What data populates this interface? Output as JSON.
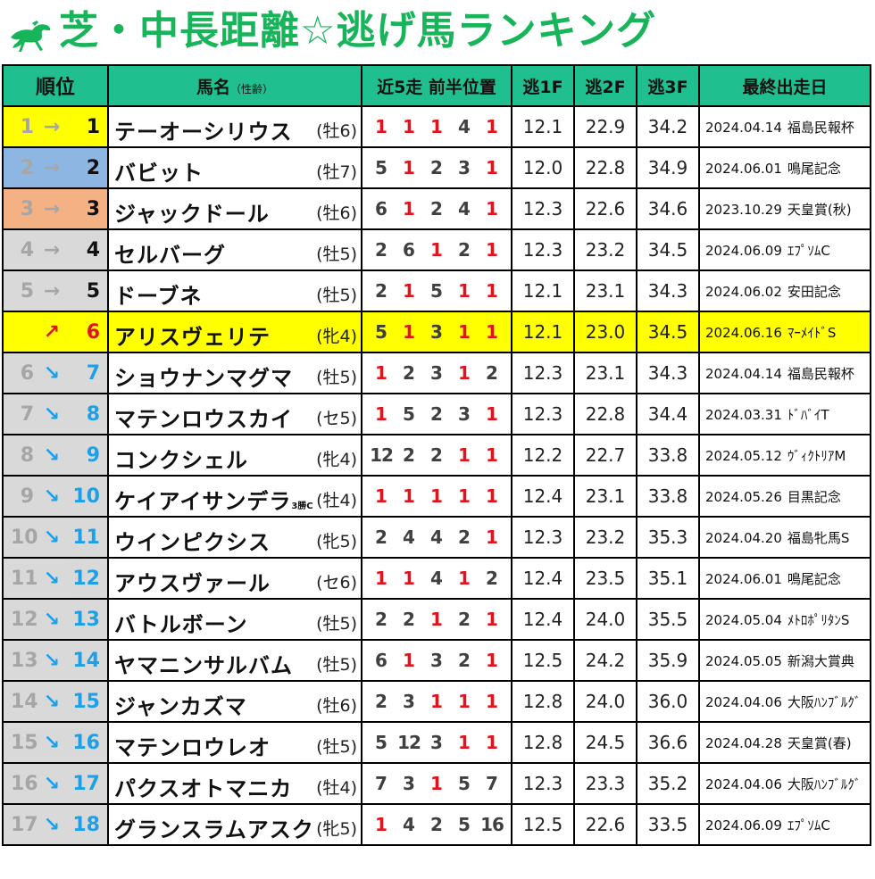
{
  "title": "芝・中長距離☆逃げ馬ランキング",
  "logo_icon": "running-horse-icon",
  "colors": {
    "title": "#18b45a",
    "header_bg": "#1fbf8f",
    "rank1_bg": "#ffff00",
    "rank2_bg": "#8eb6e3",
    "rank3_bg": "#f4b183",
    "rank_other_bg": "#d9d9d9",
    "highlight_row_bg": "#ffff00",
    "arrow_up": "#e0141e",
    "arrow_down": "#1ea0e6",
    "arrow_same": "#a6a6a6",
    "position_red": "#e0141e",
    "position_gray": "#404040"
  },
  "headers": {
    "rank": "順位",
    "name": "馬名",
    "name_sub": "（性齢）",
    "form": "近5走 前半位置",
    "f1": "逃1F",
    "f2": "逃2F",
    "f3": "逃3F",
    "last": "最終出走日"
  },
  "rows": [
    {
      "prev": "1",
      "arrow": "→",
      "trend": "same",
      "rank": "1",
      "name": "テーオーシリウス",
      "cls": "",
      "sexage": "(牡6)",
      "pos": [
        "1",
        "1",
        "1",
        "4",
        "1"
      ],
      "f1": "12.1",
      "f2": "22.9",
      "f3": "34.2",
      "date": "2024.04.14",
      "race": "福島民報杯"
    },
    {
      "prev": "2",
      "arrow": "→",
      "trend": "same",
      "rank": "2",
      "name": "バビット",
      "cls": "",
      "sexage": "(牡7)",
      "pos": [
        "5",
        "1",
        "2",
        "3",
        "1"
      ],
      "f1": "12.0",
      "f2": "22.8",
      "f3": "34.9",
      "date": "2024.06.01",
      "race": "鳴尾記念"
    },
    {
      "prev": "3",
      "arrow": "→",
      "trend": "same",
      "rank": "3",
      "name": "ジャックドール",
      "cls": "",
      "sexage": "(牡6)",
      "pos": [
        "6",
        "1",
        "2",
        "4",
        "1"
      ],
      "f1": "12.3",
      "f2": "22.6",
      "f3": "34.6",
      "date": "2023.10.29",
      "race": "天皇賞(秋)"
    },
    {
      "prev": "4",
      "arrow": "→",
      "trend": "same",
      "rank": "4",
      "name": "セルバーグ",
      "cls": "",
      "sexage": "(牡5)",
      "pos": [
        "2",
        "6",
        "1",
        "2",
        "1"
      ],
      "f1": "12.3",
      "f2": "23.2",
      "f3": "34.5",
      "date": "2024.06.09",
      "race": "ｴﾌﾟｿﾑC"
    },
    {
      "prev": "5",
      "arrow": "→",
      "trend": "same",
      "rank": "5",
      "name": "ドーブネ",
      "cls": "",
      "sexage": "(牡5)",
      "pos": [
        "2",
        "1",
        "5",
        "1",
        "1"
      ],
      "f1": "12.1",
      "f2": "23.1",
      "f3": "34.3",
      "date": "2024.06.02",
      "race": "安田記念"
    },
    {
      "prev": "",
      "arrow": "↗",
      "trend": "up",
      "rank": "6",
      "name": "アリスヴェリテ",
      "cls": "",
      "sexage": "(牝4)",
      "pos": [
        "5",
        "1",
        "3",
        "1",
        "1"
      ],
      "f1": "12.1",
      "f2": "23.0",
      "f3": "34.5",
      "date": "2024.06.16",
      "race": "ﾏｰﾒｲﾄﾞS",
      "highlight": true
    },
    {
      "prev": "6",
      "arrow": "↘",
      "trend": "down",
      "rank": "7",
      "name": "ショウナンマグマ",
      "cls": "",
      "sexage": "(牡5)",
      "pos": [
        "1",
        "2",
        "3",
        "1",
        "2"
      ],
      "f1": "12.3",
      "f2": "23.1",
      "f3": "34.3",
      "date": "2024.04.14",
      "race": "福島民報杯"
    },
    {
      "prev": "7",
      "arrow": "↘",
      "trend": "down",
      "rank": "8",
      "name": "マテンロウスカイ",
      "cls": "",
      "sexage": "(セ5)",
      "pos": [
        "1",
        "5",
        "2",
        "3",
        "1"
      ],
      "f1": "12.3",
      "f2": "22.8",
      "f3": "34.4",
      "date": "2024.03.31",
      "race": "ﾄﾞﾊﾞｲT"
    },
    {
      "prev": "8",
      "arrow": "↘",
      "trend": "down",
      "rank": "9",
      "name": "コンクシェル",
      "cls": "",
      "sexage": "(牝4)",
      "pos": [
        "12",
        "2",
        "2",
        "1",
        "1"
      ],
      "f1": "12.2",
      "f2": "22.7",
      "f3": "33.8",
      "date": "2024.05.12",
      "race": "ｳﾞｨｸﾄﾘｱM"
    },
    {
      "prev": "9",
      "arrow": "↘",
      "trend": "down",
      "rank": "10",
      "name": "ケイアイサンデラ",
      "cls": "3勝C",
      "sexage": "(牡4)",
      "pos": [
        "1",
        "1",
        "1",
        "1",
        "1"
      ],
      "f1": "12.4",
      "f2": "23.1",
      "f3": "33.8",
      "date": "2024.05.26",
      "race": "目黒記念"
    },
    {
      "prev": "10",
      "arrow": "↘",
      "trend": "down",
      "rank": "11",
      "name": "ウインピクシス",
      "cls": "",
      "sexage": "(牝5)",
      "pos": [
        "2",
        "4",
        "4",
        "2",
        "1"
      ],
      "f1": "12.3",
      "f2": "23.2",
      "f3": "35.3",
      "date": "2024.04.20",
      "race": "福島牝馬S"
    },
    {
      "prev": "11",
      "arrow": "↘",
      "trend": "down",
      "rank": "12",
      "name": "アウスヴァール",
      "cls": "",
      "sexage": "(セ6)",
      "pos": [
        "1",
        "1",
        "4",
        "1",
        "2"
      ],
      "f1": "12.4",
      "f2": "23.5",
      "f3": "35.1",
      "date": "2024.06.01",
      "race": "鳴尾記念"
    },
    {
      "prev": "12",
      "arrow": "↘",
      "trend": "down",
      "rank": "13",
      "name": "バトルボーン",
      "cls": "",
      "sexage": "(牡5)",
      "pos": [
        "2",
        "2",
        "1",
        "2",
        "1"
      ],
      "f1": "12.4",
      "f2": "24.0",
      "f3": "35.5",
      "date": "2024.05.04",
      "race": "ﾒﾄﾛﾎﾟﾘﾀﾝS"
    },
    {
      "prev": "13",
      "arrow": "↘",
      "trend": "down",
      "rank": "14",
      "name": "ヤマニンサルバム",
      "cls": "",
      "sexage": "(牡5)",
      "pos": [
        "6",
        "1",
        "3",
        "2",
        "1"
      ],
      "f1": "12.5",
      "f2": "24.2",
      "f3": "35.9",
      "date": "2024.05.05",
      "race": "新潟大賞典"
    },
    {
      "prev": "14",
      "arrow": "↘",
      "trend": "down",
      "rank": "15",
      "name": "ジャンカズマ",
      "cls": "",
      "sexage": "(牡6)",
      "pos": [
        "2",
        "3",
        "1",
        "1",
        "1"
      ],
      "f1": "12.8",
      "f2": "24.0",
      "f3": "36.0",
      "date": "2024.04.06",
      "race": "大阪ﾊﾝﾌﾞﾙｸﾞ"
    },
    {
      "prev": "15",
      "arrow": "↘",
      "trend": "down",
      "rank": "16",
      "name": "マテンロウレオ",
      "cls": "",
      "sexage": "(牡5)",
      "pos": [
        "5",
        "12",
        "3",
        "1",
        "1"
      ],
      "f1": "12.8",
      "f2": "24.5",
      "f3": "36.6",
      "date": "2024.04.28",
      "race": "天皇賞(春)"
    },
    {
      "prev": "16",
      "arrow": "↘",
      "trend": "down",
      "rank": "17",
      "name": "パクスオトマニカ",
      "cls": "",
      "sexage": "(牡4)",
      "pos": [
        "7",
        "3",
        "1",
        "5",
        "7"
      ],
      "f1": "12.3",
      "f2": "23.3",
      "f3": "35.2",
      "date": "2024.04.06",
      "race": "大阪ﾊﾝﾌﾞﾙｸﾞ"
    },
    {
      "prev": "17",
      "arrow": "↘",
      "trend": "down",
      "rank": "18",
      "name": "グランスラムアスク",
      "cls": "",
      "sexage": "(牝5)",
      "pos": [
        "1",
        "4",
        "2",
        "5",
        "16"
      ],
      "f1": "12.5",
      "f2": "22.6",
      "f3": "33.5",
      "date": "2024.06.09",
      "race": "ｴﾌﾟｿﾑC"
    }
  ]
}
